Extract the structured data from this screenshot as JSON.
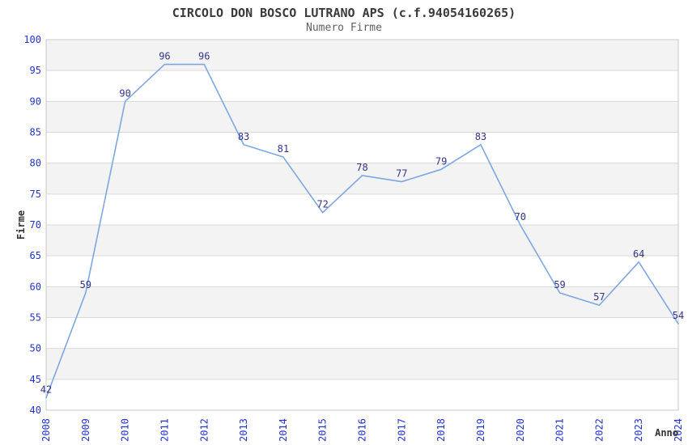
{
  "chart": {
    "title": "CIRCOLO DON BOSCO LUTRANO APS (c.f.94054160265)",
    "subtitle": "Numero Firme"
  },
  "chart_data": {
    "type": "line",
    "title": "CIRCOLO DON BOSCO LUTRANO APS (c.f.94054160265)",
    "subtitle": "Numero Firme",
    "categories": [
      "2008",
      "2009",
      "2010",
      "2011",
      "2012",
      "2013",
      "2014",
      "2015",
      "2016",
      "2017",
      "2018",
      "2019",
      "2020",
      "2021",
      "2022",
      "2023",
      "2024"
    ],
    "series": [
      {
        "name": "Numero Firme",
        "values": [
          42,
          59,
          90,
          96,
          96,
          83,
          81,
          72,
          78,
          77,
          79,
          83,
          70,
          59,
          57,
          64,
          54
        ]
      }
    ],
    "xlabel": "Anno",
    "ylabel": "Firme",
    "ylim": [
      40,
      100
    ],
    "ytick_step": 5,
    "grid": true,
    "banded_background": true,
    "show_point_labels": true,
    "legend_position": "none",
    "colors": {
      "line": "#7da7e0",
      "tick_label": "#2233cc",
      "point_label": "#333388",
      "band_fill": "#f3f3f3",
      "grid_line": "#d9d9d9",
      "plot_border": "#c9c9c9",
      "title": "#3a3a3a",
      "subtitle": "#5f5f5f",
      "axis_title": "#333333",
      "background": "#ffffff"
    }
  }
}
